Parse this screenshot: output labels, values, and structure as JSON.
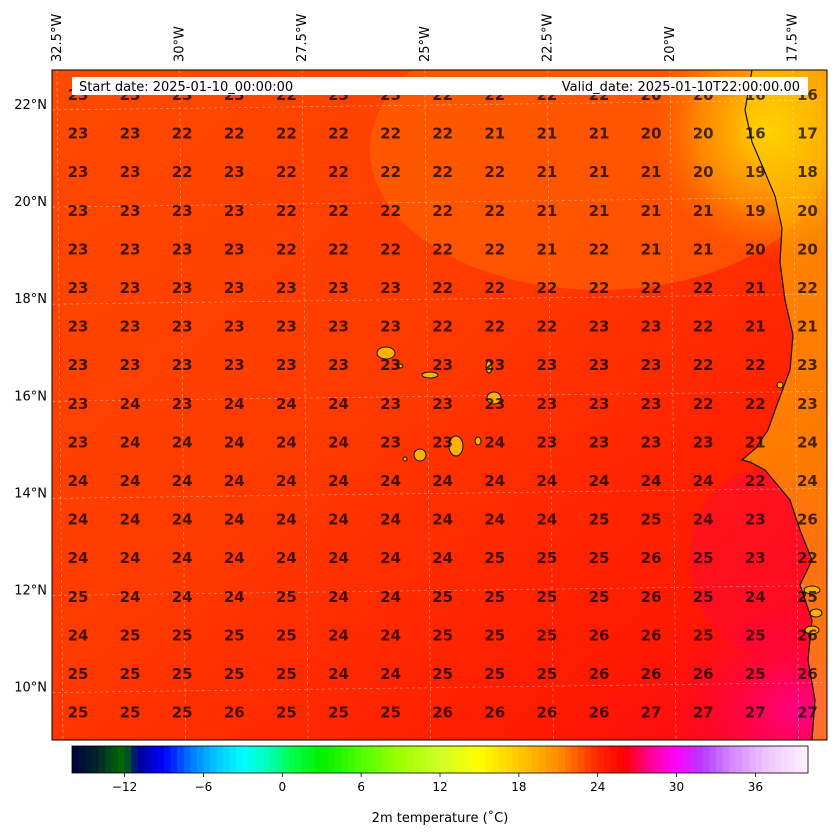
{
  "header": {
    "start_label": "Start date: 2025-01-10_00:00:00",
    "valid_label": "Valid_date: 2025-01-10T22:00:00.00"
  },
  "map": {
    "lon_labels": [
      "32.5°W",
      "30°W",
      "27.5°W",
      "25°W",
      "22.5°W",
      "20°W",
      "17.5°W"
    ],
    "lon_values": [
      -32.5,
      -30,
      -27.5,
      -25,
      -22.5,
      -20,
      -17.5
    ],
    "lat_labels": [
      "22°N",
      "20°N",
      "18°N",
      "16°N",
      "14°N",
      "12°N",
      "10°N"
    ],
    "lat_values": [
      22,
      20,
      18,
      16,
      14,
      12,
      10
    ],
    "lon_range": [
      -32.6,
      -16.8
    ],
    "lat_range": [
      8.9,
      22.7
    ],
    "coast_color": "#111111",
    "grid": true
  },
  "colorbar": {
    "label": "2m temperature ($^\\circ$C)",
    "label_display": "2m temperature (˚C)",
    "range": [
      -16,
      40
    ],
    "tick_values": [
      -12,
      -6,
      0,
      6,
      12,
      18,
      24,
      30,
      36
    ],
    "tick_labels": [
      "−12",
      "−6",
      "0",
      "6",
      "12",
      "18",
      "24",
      "30",
      "36"
    ]
  },
  "chart_data": {
    "type": "heatmap",
    "title": "",
    "xlabel": "",
    "ylabel": "",
    "variable": "2m temperature (˚C)",
    "units": "˚C",
    "rows": [
      [
        23,
        23,
        23,
        23,
        22,
        23,
        23,
        22,
        22,
        22,
        22,
        20,
        20,
        16,
        16
      ],
      [
        23,
        23,
        22,
        22,
        22,
        22,
        22,
        22,
        21,
        21,
        21,
        20,
        20,
        16,
        17
      ],
      [
        23,
        23,
        22,
        23,
        22,
        22,
        22,
        22,
        22,
        21,
        21,
        21,
        20,
        19,
        18
      ],
      [
        23,
        23,
        23,
        23,
        22,
        22,
        22,
        22,
        22,
        21,
        21,
        21,
        21,
        19,
        20
      ],
      [
        23,
        23,
        23,
        23,
        22,
        22,
        22,
        22,
        22,
        21,
        22,
        21,
        21,
        20,
        20
      ],
      [
        23,
        23,
        23,
        23,
        23,
        23,
        23,
        22,
        22,
        22,
        22,
        22,
        22,
        21,
        22
      ],
      [
        23,
        23,
        23,
        23,
        23,
        23,
        23,
        22,
        22,
        22,
        23,
        23,
        22,
        21,
        21
      ],
      [
        23,
        23,
        23,
        23,
        23,
        23,
        23,
        23,
        23,
        23,
        23,
        23,
        22,
        22,
        23
      ],
      [
        23,
        24,
        23,
        24,
        24,
        24,
        23,
        23,
        23,
        23,
        23,
        23,
        22,
        22,
        23
      ],
      [
        23,
        24,
        24,
        24,
        24,
        24,
        23,
        23,
        24,
        23,
        23,
        23,
        23,
        21,
        24
      ],
      [
        24,
        24,
        24,
        24,
        24,
        24,
        24,
        24,
        24,
        24,
        24,
        24,
        24,
        22,
        24
      ],
      [
        24,
        24,
        24,
        24,
        24,
        24,
        24,
        24,
        24,
        24,
        25,
        25,
        24,
        23,
        26
      ],
      [
        24,
        24,
        24,
        24,
        24,
        24,
        24,
        24,
        25,
        25,
        25,
        26,
        25,
        23,
        22
      ],
      [
        25,
        24,
        24,
        24,
        25,
        24,
        24,
        25,
        25,
        25,
        25,
        26,
        25,
        24,
        25
      ],
      [
        24,
        25,
        25,
        25,
        25,
        24,
        24,
        25,
        25,
        25,
        26,
        26,
        25,
        25,
        26
      ],
      [
        25,
        25,
        25,
        25,
        25,
        24,
        24,
        25,
        25,
        25,
        26,
        26,
        26,
        25,
        26
      ],
      [
        25,
        25,
        25,
        26,
        25,
        25,
        25,
        26,
        26,
        26,
        26,
        27,
        27,
        27,
        27
      ]
    ]
  }
}
